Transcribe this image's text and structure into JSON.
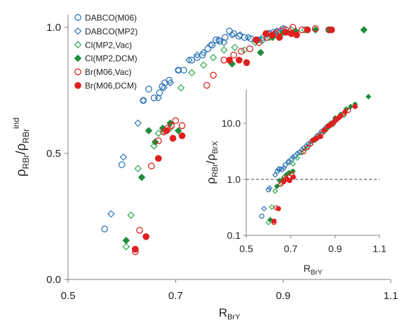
{
  "chart_data": [
    {
      "type": "scatter",
      "xlabel": {
        "main": "R",
        "sub": "BrY"
      },
      "ylabel": {
        "base1": "ρ",
        "sub1": "RBr",
        "slash": "/",
        "base2": "ρ",
        "sub2": "RBr",
        "sup2": "ind"
      },
      "xlim": [
        0.5,
        1.1
      ],
      "ylim": [
        0.0,
        1.05
      ],
      "x_ticks": [
        "0.5",
        "0.7",
        "0.9",
        "1.1"
      ],
      "y_ticks": [
        "0.0",
        "0.5",
        "1.0"
      ],
      "x_tick_values": [
        0.5,
        0.7,
        0.9,
        1.1
      ],
      "y_tick_values": [
        0.0,
        0.5,
        1.0
      ],
      "grid": false,
      "legend_position": "top-left",
      "series": [
        {
          "name": "DABCO(M06)",
          "marker": "circle",
          "filled": false,
          "color": "#2E75B6",
          "points": [
            [
              0.568,
              0.2
            ],
            [
              0.6,
              0.455
            ],
            [
              0.64,
              0.71
            ],
            [
              0.65,
              0.755
            ],
            [
              0.66,
              0.72
            ],
            [
              0.67,
              0.74
            ],
            [
              0.675,
              0.765
            ],
            [
              0.68,
              0.78
            ],
            [
              0.688,
              0.79
            ],
            [
              0.705,
              0.83
            ],
            [
              0.715,
              0.83
            ],
            [
              0.73,
              0.87
            ],
            [
              0.74,
              0.88
            ],
            [
              0.75,
              0.89
            ],
            [
              0.76,
              0.915
            ],
            [
              0.768,
              0.93
            ],
            [
              0.775,
              0.95
            ],
            [
              0.782,
              0.945
            ],
            [
              0.792,
              0.96
            ],
            [
              0.8,
              0.985
            ],
            [
              0.808,
              0.975
            ],
            [
              0.818,
              0.965
            ],
            [
              0.828,
              0.96
            ],
            [
              0.84,
              0.955
            ],
            [
              0.852,
              0.95
            ],
            [
              0.86,
              0.95
            ],
            [
              0.872,
              0.975
            ],
            [
              0.882,
              0.98
            ],
            [
              0.89,
              0.98
            ],
            [
              0.9,
              0.995
            ]
          ]
        },
        {
          "name": "DABCO(MP2)",
          "marker": "diamond",
          "filled": false,
          "color": "#2E75B6",
          "points": [
            [
              0.58,
              0.26
            ],
            [
              0.603,
              0.485
            ],
            [
              0.63,
              0.62
            ],
            [
              0.64,
              0.71
            ],
            [
              0.668,
              0.72
            ],
            [
              0.678,
              0.76
            ],
            [
              0.69,
              0.78
            ],
            [
              0.705,
              0.83
            ],
            [
              0.725,
              0.87
            ],
            [
              0.74,
              0.89
            ],
            [
              0.752,
              0.9
            ],
            [
              0.765,
              0.93
            ],
            [
              0.78,
              0.95
            ],
            [
              0.79,
              0.94
            ],
            [
              0.805,
              0.97
            ],
            [
              0.82,
              0.97
            ],
            [
              0.835,
              0.96
            ],
            [
              0.848,
              0.95
            ],
            [
              0.862,
              0.96
            ],
            [
              0.875,
              0.975
            ],
            [
              0.888,
              0.985
            ],
            [
              0.9,
              0.99
            ]
          ]
        },
        {
          "name": "Cl(MP2,Vac)",
          "marker": "diamond",
          "filled": false,
          "color": "#2EA84B",
          "points": [
            [
              0.608,
              0.13
            ],
            [
              0.617,
              0.255
            ],
            [
              0.63,
              0.44
            ],
            [
              0.66,
              0.53
            ],
            [
              0.668,
              0.58
            ],
            [
              0.678,
              0.59
            ],
            [
              0.69,
              0.6
            ],
            [
              0.71,
              0.76
            ],
            [
              0.73,
              0.82
            ],
            [
              0.752,
              0.85
            ],
            [
              0.77,
              0.88
            ],
            [
              0.79,
              0.91
            ],
            [
              0.81,
              0.92
            ],
            [
              0.828,
              0.91
            ],
            [
              0.848,
              0.94
            ],
            [
              0.862,
              0.95
            ],
            [
              0.875,
              0.96
            ],
            [
              0.888,
              0.97
            ],
            [
              0.9,
              0.98
            ],
            [
              0.915,
              0.99
            ],
            [
              0.94,
              0.99
            ]
          ]
        },
        {
          "name": "Cl(MP2,DCM)",
          "marker": "diamond",
          "filled": true,
          "color": "#1E8C3A",
          "points": [
            [
              0.608,
              0.155
            ],
            [
              0.637,
              0.405
            ],
            [
              0.65,
              0.59
            ],
            [
              0.662,
              0.545
            ],
            [
              0.676,
              0.6
            ],
            [
              0.69,
              0.62
            ],
            [
              0.705,
              0.59
            ],
            [
              0.805,
              0.855
            ],
            [
              0.858,
              0.9
            ],
            [
              0.88,
              0.96
            ],
            [
              0.9,
              0.98
            ],
            [
              0.923,
              0.985
            ],
            [
              0.945,
              0.99
            ],
            [
              0.96,
              0.99
            ],
            [
              0.985,
              0.99
            ],
            [
              1.05,
              0.99
            ]
          ]
        },
        {
          "name": "Br(M06,Vac)",
          "marker": "circle",
          "filled": false,
          "color": "#E02020",
          "points": [
            [
              0.625,
              0.11
            ],
            [
              0.633,
              0.195
            ],
            [
              0.655,
              0.45
            ],
            [
              0.668,
              0.55
            ],
            [
              0.678,
              0.585
            ],
            [
              0.685,
              0.6
            ],
            [
              0.692,
              0.61
            ],
            [
              0.7,
              0.63
            ],
            [
              0.712,
              0.61
            ],
            [
              0.758,
              0.77
            ],
            [
              0.77,
              0.81
            ],
            [
              0.79,
              0.87
            ],
            [
              0.808,
              0.89
            ],
            [
              0.822,
              0.905
            ],
            [
              0.838,
              0.915
            ],
            [
              0.855,
              0.94
            ],
            [
              0.87,
              0.96
            ],
            [
              0.885,
              0.975
            ],
            [
              0.895,
              0.985
            ],
            [
              0.905,
              0.99
            ],
            [
              0.918,
              1.0
            ],
            [
              0.935,
              0.99
            ],
            [
              0.96,
              0.995
            ],
            [
              0.985,
              0.99
            ]
          ]
        },
        {
          "name": "Br(M06,DCM)",
          "marker": "circle",
          "filled": true,
          "color": "#E02020",
          "points": [
            [
              0.625,
              0.12
            ],
            [
              0.645,
              0.17
            ],
            [
              0.668,
              0.48
            ],
            [
              0.683,
              0.59
            ],
            [
              0.695,
              0.56
            ],
            [
              0.712,
              0.57
            ],
            [
              0.8,
              0.87
            ],
            [
              0.818,
              0.87
            ],
            [
              0.832,
              0.86
            ],
            [
              0.85,
              0.95
            ],
            [
              0.868,
              0.975
            ],
            [
              0.88,
              0.97
            ],
            [
              0.893,
              0.96
            ],
            [
              0.905,
              0.98
            ],
            [
              0.915,
              0.975
            ],
            [
              0.925,
              0.97
            ],
            [
              0.945,
              0.99
            ],
            [
              0.99,
              0.99
            ]
          ]
        }
      ]
    },
    {
      "type": "scatter",
      "xlabel": {
        "main": "R",
        "sub": "BrY"
      },
      "ylabel": {
        "base1": "ρ",
        "sub1": "RBr",
        "slash": "/",
        "base2": "ρ",
        "sub2": "BrX"
      },
      "xlim": [
        0.5,
        1.1
      ],
      "ylim": [
        0.1,
        40
      ],
      "log_y": true,
      "x_ticks": [
        "0.5",
        "0.7",
        "0.9",
        "1.1"
      ],
      "y_ticks": [
        "0.1",
        "1.0",
        "10.0"
      ],
      "x_tick_values": [
        0.5,
        0.7,
        0.9,
        1.1
      ],
      "y_tick_values": [
        0.1,
        1.0,
        10.0
      ],
      "reference_line": {
        "y": 1.0,
        "style": "dashed"
      },
      "grid": false,
      "series": [
        {
          "name": "DABCO(M06)",
          "marker": "circle",
          "filled": false,
          "color": "#2E75B6",
          "points": [
            [
              0.57,
              0.22
            ],
            [
              0.6,
              0.65
            ],
            [
              0.64,
              1.4
            ],
            [
              0.65,
              1.55
            ],
            [
              0.66,
              1.5
            ],
            [
              0.675,
              1.8
            ],
            [
              0.69,
              2.0
            ],
            [
              0.705,
              2.3
            ],
            [
              0.72,
              2.6
            ],
            [
              0.74,
              3.0
            ],
            [
              0.76,
              3.6
            ],
            [
              0.78,
              4.3
            ],
            [
              0.8,
              5.0
            ],
            [
              0.82,
              6.0
            ],
            [
              0.84,
              7.2
            ],
            [
              0.86,
              8.5
            ],
            [
              0.88,
              9.8
            ],
            [
              0.9,
              11.5
            ]
          ]
        },
        {
          "name": "DABCO(MP2)",
          "marker": "diamond",
          "filled": false,
          "color": "#2E75B6",
          "points": [
            [
              0.58,
              0.3
            ],
            [
              0.605,
              0.7
            ],
            [
              0.63,
              1.2
            ],
            [
              0.645,
              1.5
            ],
            [
              0.67,
              1.6
            ],
            [
              0.69,
              2.1
            ],
            [
              0.71,
              2.5
            ],
            [
              0.73,
              2.9
            ],
            [
              0.75,
              3.4
            ],
            [
              0.77,
              4.0
            ],
            [
              0.79,
              4.7
            ],
            [
              0.81,
              5.5
            ],
            [
              0.83,
              6.5
            ],
            [
              0.85,
              7.8
            ],
            [
              0.87,
              9.0
            ],
            [
              0.89,
              10.5
            ]
          ]
        },
        {
          "name": "Cl(MP2,Vac)",
          "marker": "diamond",
          "filled": false,
          "color": "#2EA84B",
          "points": [
            [
              0.6,
              0.17
            ],
            [
              0.615,
              0.32
            ],
            [
              0.63,
              0.62
            ],
            [
              0.66,
              0.85
            ],
            [
              0.67,
              1.1
            ],
            [
              0.69,
              1.3
            ],
            [
              0.71,
              1.9
            ],
            [
              0.73,
              2.4
            ],
            [
              0.75,
              3.0
            ],
            [
              0.77,
              3.6
            ],
            [
              0.79,
              4.2
            ],
            [
              0.81,
              5.0
            ],
            [
              0.83,
              6.0
            ],
            [
              0.85,
              7.0
            ],
            [
              0.87,
              8.5
            ],
            [
              0.89,
              9.5
            ],
            [
              0.91,
              12.0
            ],
            [
              0.94,
              14.0
            ]
          ]
        },
        {
          "name": "Cl(MP2,DCM)",
          "marker": "diamond",
          "filled": true,
          "color": "#1E8C3A",
          "points": [
            [
              0.608,
              0.19
            ],
            [
              0.638,
              0.75
            ],
            [
              0.65,
              0.95
            ],
            [
              0.665,
              1.0
            ],
            [
              0.68,
              1.2
            ],
            [
              0.695,
              1.3
            ],
            [
              0.71,
              1.4
            ],
            [
              0.805,
              5.0
            ],
            [
              0.86,
              8.0
            ],
            [
              0.88,
              10.0
            ],
            [
              0.9,
              12.5
            ],
            [
              0.925,
              14.5
            ],
            [
              0.95,
              18.0
            ],
            [
              0.97,
              20.0
            ],
            [
              0.99,
              22.0
            ],
            [
              1.05,
              30.0
            ]
          ]
        },
        {
          "name": "Br(M06,Vac)",
          "marker": "circle",
          "filled": false,
          "color": "#E02020",
          "points": [
            [
              0.625,
              0.17
            ],
            [
              0.635,
              0.31
            ],
            [
              0.655,
              0.82
            ],
            [
              0.668,
              0.95
            ],
            [
              0.68,
              1.05
            ],
            [
              0.692,
              1.1
            ],
            [
              0.705,
              1.25
            ],
            [
              0.758,
              3.1
            ],
            [
              0.775,
              3.7
            ],
            [
              0.79,
              4.3
            ],
            [
              0.81,
              5.2
            ],
            [
              0.825,
              5.8
            ],
            [
              0.84,
              6.6
            ],
            [
              0.858,
              7.8
            ],
            [
              0.875,
              9.0
            ],
            [
              0.89,
              10.0
            ],
            [
              0.905,
              11.5
            ],
            [
              0.92,
              13.0
            ],
            [
              0.94,
              15.0
            ],
            [
              0.96,
              17.0
            ]
          ]
        },
        {
          "name": "Br(M06,DCM)",
          "marker": "circle",
          "filled": true,
          "color": "#E02020",
          "points": [
            [
              0.625,
              0.18
            ],
            [
              0.645,
              0.3
            ],
            [
              0.668,
              0.9
            ],
            [
              0.683,
              1.0
            ],
            [
              0.695,
              0.95
            ],
            [
              0.712,
              1.1
            ],
            [
              0.8,
              5.0
            ],
            [
              0.818,
              5.4
            ],
            [
              0.835,
              5.8
            ],
            [
              0.85,
              7.5
            ],
            [
              0.868,
              9.0
            ],
            [
              0.88,
              9.5
            ],
            [
              0.895,
              10.5
            ],
            [
              0.905,
              12.0
            ],
            [
              0.915,
              12.5
            ],
            [
              0.925,
              13.5
            ],
            [
              0.945,
              16.0
            ],
            [
              0.99,
              20.0
            ]
          ]
        }
      ]
    }
  ]
}
